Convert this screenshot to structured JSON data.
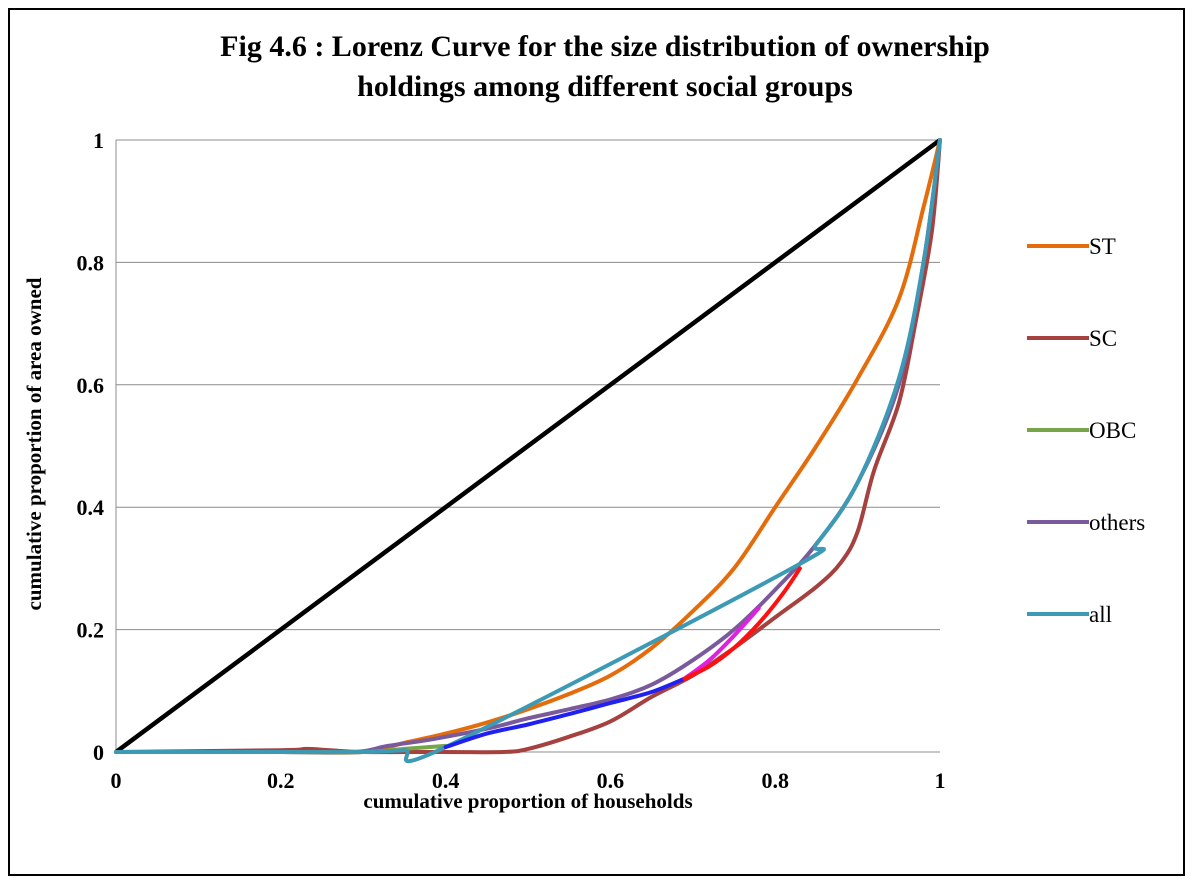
{
  "chart_data": {
    "type": "line",
    "title_lines": [
      "Fig 4.6 :  Lorenz Curve for the size distribution of ownership",
      "holdings among different social groups"
    ],
    "xlabel": "cumulative proportion  of households",
    "ylabel": "cumulative proportion of area owned",
    "xlim": [
      0,
      1
    ],
    "ylim": [
      0,
      1
    ],
    "x_ticks": [
      0,
      0.2,
      0.4,
      0.6,
      0.8,
      1
    ],
    "x_tick_labels": [
      "0",
      "0.2",
      "0.4",
      "0.6",
      "0.8",
      "1"
    ],
    "y_ticks": [
      0,
      0.2,
      0.4,
      0.6,
      0.8,
      1
    ],
    "y_tick_labels": [
      "0",
      "0.2",
      "0.4",
      "0.6",
      "0.8",
      "1"
    ],
    "grid": "horizontal",
    "legend_position": "right",
    "equality_line": {
      "color": "#000000",
      "points": [
        [
          0,
          0
        ],
        [
          1,
          1
        ]
      ]
    },
    "series": [
      {
        "name": "ST",
        "color": "#E46C0A",
        "points": [
          [
            0,
            0
          ],
          [
            0.1,
            0
          ],
          [
            0.2,
            0
          ],
          [
            0.3,
            0
          ],
          [
            0.35,
            0.015
          ],
          [
            0.4,
            0.03
          ],
          [
            0.45,
            0.048
          ],
          [
            0.5,
            0.07
          ],
          [
            0.55,
            0.095
          ],
          [
            0.6,
            0.125
          ],
          [
            0.65,
            0.17
          ],
          [
            0.7,
            0.23
          ],
          [
            0.75,
            0.3
          ],
          [
            0.8,
            0.4
          ],
          [
            0.85,
            0.5
          ],
          [
            0.9,
            0.61
          ],
          [
            0.95,
            0.74
          ],
          [
            0.98,
            0.89
          ],
          [
            1,
            1
          ]
        ]
      },
      {
        "name": "SC",
        "color": "#A5413E",
        "points": [
          [
            0,
            0
          ],
          [
            0.2,
            0.003
          ],
          [
            0.23,
            0.005
          ],
          [
            0.26,
            0.003
          ],
          [
            0.3,
            0
          ],
          [
            0.4,
            0
          ],
          [
            0.47,
            0
          ],
          [
            0.5,
            0.005
          ],
          [
            0.55,
            0.025
          ],
          [
            0.6,
            0.05
          ],
          [
            0.65,
            0.09
          ],
          [
            0.7,
            0.125
          ],
          [
            0.75,
            0.17
          ],
          [
            0.8,
            0.22
          ],
          [
            0.85,
            0.27
          ],
          [
            0.88,
            0.31
          ],
          [
            0.9,
            0.36
          ],
          [
            0.92,
            0.46
          ],
          [
            0.95,
            0.57
          ],
          [
            0.97,
            0.7
          ],
          [
            0.99,
            0.85
          ],
          [
            1,
            1
          ]
        ]
      },
      {
        "name": "OBC",
        "color": "#77A54A",
        "points": [
          [
            0,
            0
          ],
          [
            0.2,
            0
          ],
          [
            0.3,
            0
          ],
          [
            0.35,
            0.005
          ],
          [
            0.4,
            0.01
          ]
        ]
      },
      {
        "name": "others",
        "color": "#7A5A9A",
        "points": [
          [
            0,
            0
          ],
          [
            0.2,
            0
          ],
          [
            0.29,
            0
          ],
          [
            0.33,
            0.01
          ],
          [
            0.38,
            0.02
          ],
          [
            0.45,
            0.038
          ],
          [
            0.5,
            0.055
          ],
          [
            0.55,
            0.07
          ],
          [
            0.6,
            0.086
          ],
          [
            0.65,
            0.11
          ],
          [
            0.7,
            0.15
          ],
          [
            0.75,
            0.2
          ],
          [
            0.8,
            0.265
          ],
          [
            0.85,
            0.34
          ],
          [
            0.9,
            0.44
          ],
          [
            0.95,
            0.6
          ],
          [
            0.98,
            0.8
          ],
          [
            1,
            1
          ]
        ]
      },
      {
        "name": "all",
        "color": "#3C9AB5",
        "points": [
          [
            0,
            0
          ],
          [
            0.2,
            0
          ],
          [
            0.3,
            0
          ],
          [
            0.35,
            0.003
          ],
          [
            0.4,
            0.008
          ],
          [
            0.82,
            0.3
          ],
          [
            0.85,
            0.34
          ],
          [
            0.9,
            0.44
          ],
          [
            0.95,
            0.61
          ],
          [
            0.98,
            0.8
          ],
          [
            1,
            1
          ]
        ]
      }
    ],
    "highlight_segments": [
      {
        "color": "#2020F0",
        "points": [
          [
            0.4,
            0.008
          ],
          [
            0.45,
            0.03
          ],
          [
            0.5,
            0.045
          ],
          [
            0.55,
            0.062
          ],
          [
            0.6,
            0.08
          ],
          [
            0.65,
            0.098
          ],
          [
            0.69,
            0.12
          ]
        ]
      },
      {
        "color": "#E020E0",
        "points": [
          [
            0.69,
            0.12
          ],
          [
            0.72,
            0.15
          ],
          [
            0.75,
            0.19
          ],
          [
            0.78,
            0.235
          ]
        ]
      },
      {
        "color": "#FF1010",
        "points": [
          [
            0.69,
            0.12
          ],
          [
            0.72,
            0.14
          ],
          [
            0.75,
            0.17
          ],
          [
            0.78,
            0.21
          ],
          [
            0.81,
            0.26
          ],
          [
            0.83,
            0.3
          ]
        ]
      }
    ]
  }
}
